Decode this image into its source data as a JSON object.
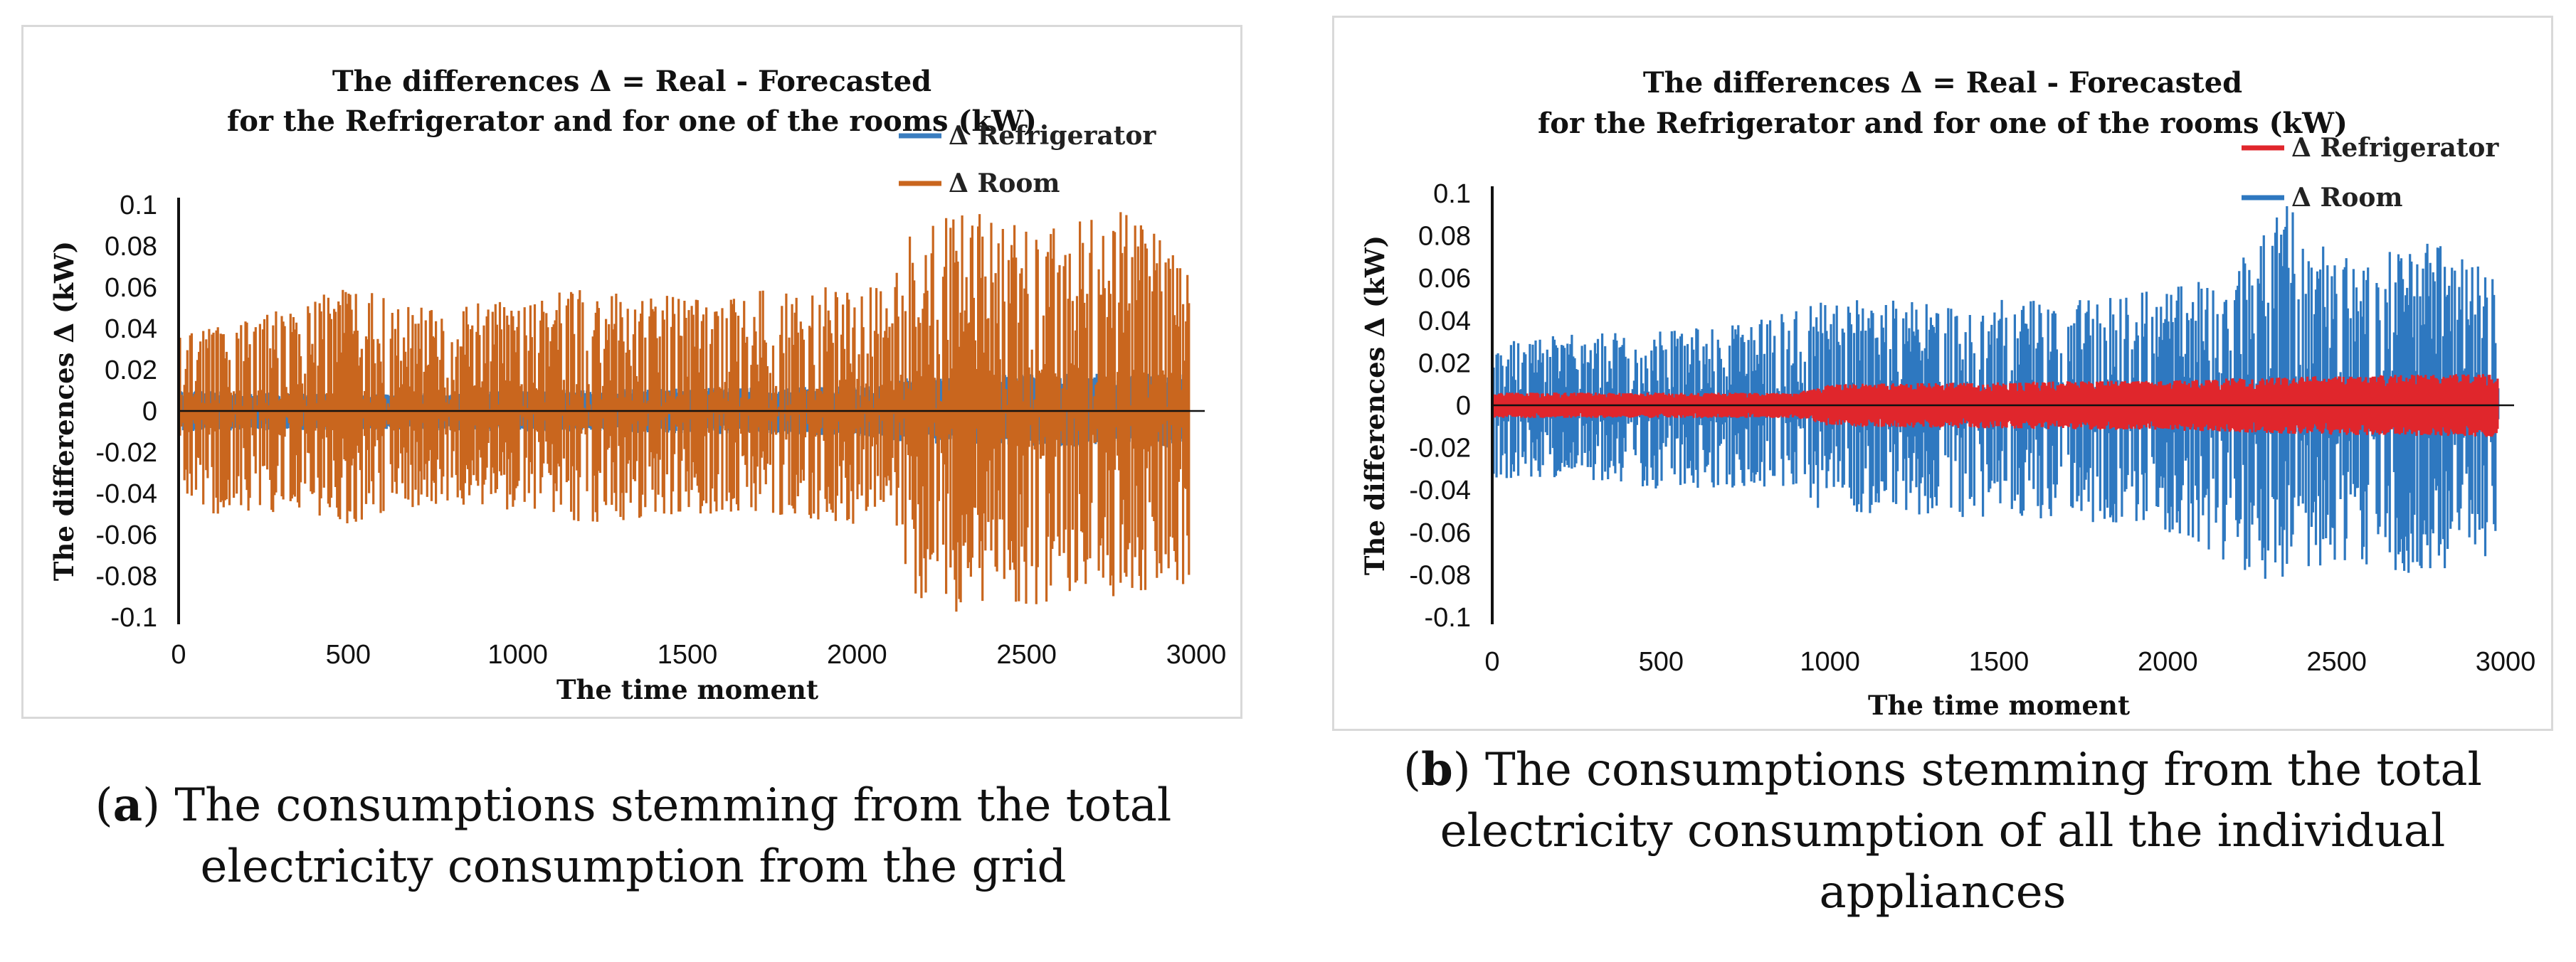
{
  "panels": [
    {
      "id": "a",
      "caption_letter": "a",
      "caption_text": ") The consumptions stemming from the total electricity consumption from the grid",
      "chart_data": {
        "type": "line",
        "title_lines": [
          "The differences Δ = Real - Forecasted",
          "for the Refrigerator and for one of the rooms (kW)"
        ],
        "xlabel": "The time moment",
        "ylabel": "The differences Δ (kW)",
        "xlim": [
          0,
          3000
        ],
        "ylim": [
          -0.1,
          0.1
        ],
        "x_ticks": [
          0,
          500,
          1000,
          1500,
          2000,
          2500,
          3000
        ],
        "y_ticks": [
          0.1,
          0.08,
          0.06,
          0.04,
          0.02,
          0,
          -0.02,
          -0.04,
          -0.06,
          -0.08,
          -0.1
        ],
        "y_tick_labels": [
          "0.1",
          "0.08",
          "0.06",
          "0.04",
          "0.02",
          "0",
          "-0.02",
          "-0.04",
          "-0.06",
          "-0.08",
          "-0.1"
        ],
        "grid": false,
        "legend_position": "top-right",
        "series": [
          {
            "name": "Δ Refrigerator",
            "color": "#3A7DBF",
            "envelope": [
              [
                0,
                0.01,
                -0.01
              ],
              [
                500,
                0.008,
                -0.009
              ],
              [
                1000,
                0.01,
                -0.01
              ],
              [
                1500,
                0.011,
                -0.011
              ],
              [
                2000,
                0.012,
                -0.012
              ],
              [
                2150,
                0.016,
                -0.016
              ],
              [
                2500,
                0.018,
                -0.017
              ],
              [
                2980,
                0.018,
                -0.018
              ]
            ]
          },
          {
            "name": "Δ Room",
            "color": "#C9661E",
            "envelope": [
              [
                0,
                0.04,
                -0.04
              ],
              [
                100,
                0.04,
                -0.05
              ],
              [
                300,
                0.05,
                -0.05
              ],
              [
                500,
                0.06,
                -0.055
              ],
              [
                750,
                0.05,
                -0.045
              ],
              [
                1000,
                0.055,
                -0.05
              ],
              [
                1250,
                0.06,
                -0.055
              ],
              [
                1500,
                0.055,
                -0.05
              ],
              [
                1750,
                0.06,
                -0.05
              ],
              [
                2000,
                0.06,
                -0.055
              ],
              [
                2100,
                0.06,
                -0.05
              ],
              [
                2150,
                0.085,
                -0.09
              ],
              [
                2300,
                0.1,
                -0.1
              ],
              [
                2500,
                0.09,
                -0.095
              ],
              [
                2750,
                0.1,
                -0.09
              ],
              [
                2980,
                0.075,
                -0.085
              ]
            ]
          }
        ]
      }
    },
    {
      "id": "b",
      "caption_letter": "b",
      "caption_text": ") The consumptions stemming from the total electricity consumption of all the individual appliances",
      "chart_data": {
        "type": "line",
        "title_lines": [
          "The differences Δ = Real - Forecasted",
          "for the Refrigerator and for one of the rooms (kW)"
        ],
        "xlabel": "The time moment",
        "ylabel": "The differences Δ (kW)",
        "xlim": [
          0,
          3000
        ],
        "ylim": [
          -0.1,
          0.1
        ],
        "x_ticks": [
          0,
          500,
          1000,
          1500,
          2000,
          2500,
          3000
        ],
        "y_ticks": [
          0.1,
          0.08,
          0.06,
          0.04,
          0.02,
          0,
          -0.02,
          -0.04,
          -0.06,
          -0.08,
          -0.1
        ],
        "y_tick_labels": [
          "0.1",
          "0.08",
          "0.06",
          "0.04",
          "0.02",
          "0",
          "-0.02",
          "-0.04",
          "-0.06",
          "-0.08",
          "-0.1"
        ],
        "grid": false,
        "legend_position": "top-right",
        "series": [
          {
            "name": "Δ Refrigerator",
            "color": "#E0262C",
            "envelope": [
              [
                0,
                0.006,
                -0.006
              ],
              [
                900,
                0.006,
                -0.006
              ],
              [
                1000,
                0.01,
                -0.01
              ],
              [
                1500,
                0.011,
                -0.011
              ],
              [
                2000,
                0.012,
                -0.012
              ],
              [
                2500,
                0.014,
                -0.014
              ],
              [
                2980,
                0.015,
                -0.015
              ]
            ]
          },
          {
            "name": "Δ Room",
            "color": "#2E78C0",
            "envelope": [
              [
                0,
                0.03,
                -0.035
              ],
              [
                250,
                0.035,
                -0.035
              ],
              [
                500,
                0.035,
                -0.04
              ],
              [
                750,
                0.04,
                -0.04
              ],
              [
                1000,
                0.05,
                -0.05
              ],
              [
                1250,
                0.05,
                -0.055
              ],
              [
                1500,
                0.05,
                -0.055
              ],
              [
                1750,
                0.05,
                -0.055
              ],
              [
                2000,
                0.055,
                -0.06
              ],
              [
                2250,
                0.075,
                -0.08
              ],
              [
                2350,
                0.095,
                -0.085
              ],
              [
                2500,
                0.07,
                -0.075
              ],
              [
                2750,
                0.08,
                -0.08
              ],
              [
                2980,
                0.065,
                -0.07
              ]
            ]
          }
        ]
      }
    }
  ]
}
